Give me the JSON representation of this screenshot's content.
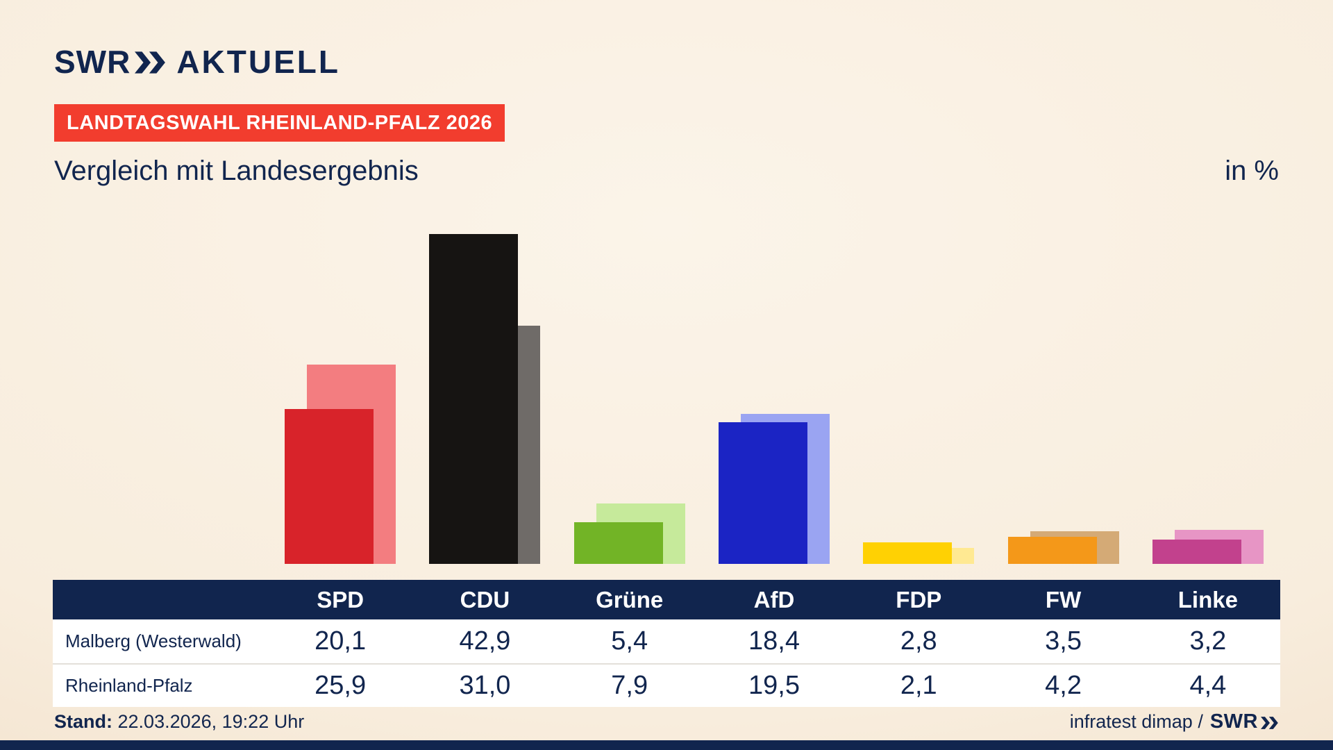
{
  "header": {
    "logo_swr": "SWR",
    "logo_aktuell": "AKTUELL",
    "badge": "LANDTAGSWAHL RHEINLAND-PFALZ 2026",
    "title": "Vergleich mit Landesergebnis",
    "unit": "in %"
  },
  "colors": {
    "navy": "#11254e",
    "badge_red": "#f23d2e",
    "background_cream": "#f8edde"
  },
  "chart_data": {
    "type": "bar",
    "title": "Vergleich mit Landesergebnis",
    "unit": "in %",
    "categories": [
      "SPD",
      "CDU",
      "Grüne",
      "AfD",
      "FDP",
      "FW",
      "Linke"
    ],
    "series": [
      {
        "name": "Malberg (Westerwald)",
        "values": [
          20.1,
          42.9,
          5.4,
          18.4,
          2.8,
          3.5,
          3.2
        ]
      },
      {
        "name": "Rheinland-Pfalz",
        "values": [
          25.9,
          31.0,
          7.9,
          19.5,
          2.1,
          4.2,
          4.4
        ]
      }
    ],
    "value_labels": [
      [
        "20,1",
        "42,9",
        "5,4",
        "18,4",
        "2,8",
        "3,5",
        "3,2"
      ],
      [
        "25,9",
        "31,0",
        "7,9",
        "19,5",
        "2,1",
        "4,2",
        "4,4"
      ]
    ],
    "colors_front": [
      "#d8232a",
      "#161412",
      "#72b426",
      "#1b24c4",
      "#ffd103",
      "#f49819",
      "#c2418d"
    ],
    "colors_back": [
      "#f37d80",
      "#6f6b68",
      "#c6ea9b",
      "#9aa4f2",
      "#ffe992",
      "#d4aa76",
      "#e795c5"
    ],
    "ylim": [
      0,
      45
    ],
    "grid": false,
    "legend_position": "table-rows"
  },
  "footer": {
    "stand_label": "Stand:",
    "stand_value": "22.03.2026, 19:22 Uhr",
    "source": "infratest dimap /",
    "source_swr": "SWR"
  }
}
